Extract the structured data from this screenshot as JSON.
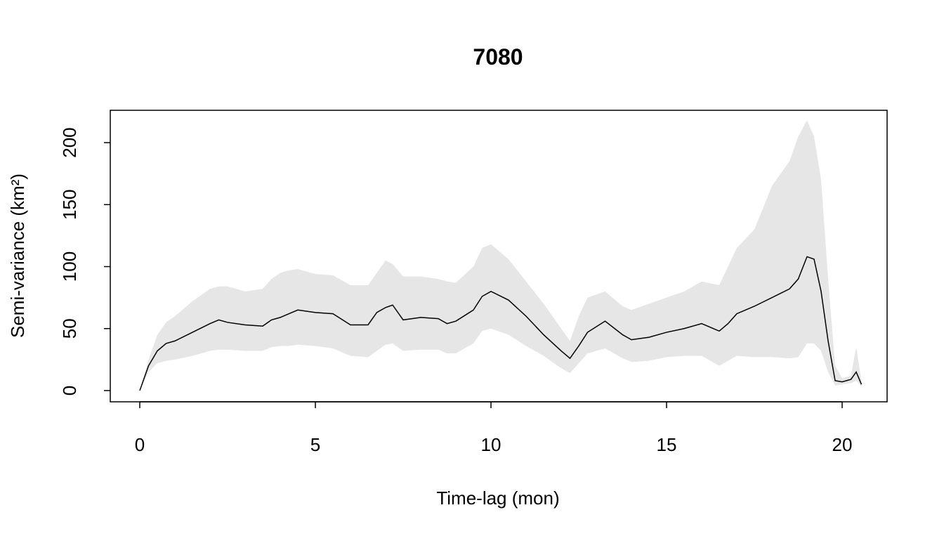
{
  "chart_data": {
    "type": "line",
    "title": "7080",
    "x_label": "Time-lag (mon)",
    "y_label": "Semi-variance (km²)",
    "x": [
      0,
      0.25,
      0.5,
      0.75,
      1,
      1.5,
      2,
      2.25,
      2.5,
      3,
      3.5,
      3.75,
      4,
      4.25,
      4.5,
      5,
      5.5,
      6,
      6.5,
      6.75,
      7,
      7.2,
      7.5,
      8,
      8.5,
      8.75,
      9,
      9.5,
      9.75,
      10,
      10.5,
      11,
      11.5,
      12,
      12.25,
      12.5,
      12.75,
      13.25,
      13.75,
      14,
      14.5,
      15,
      15.5,
      16,
      16.5,
      16.75,
      17,
      17.5,
      18,
      18.5,
      18.75,
      19,
      19.2,
      19.4,
      19.6,
      19.8,
      20,
      20.25,
      20.4,
      20.55
    ],
    "series": [
      {
        "color": "#000000",
        "values": [
          0,
          20,
          32,
          38,
          40,
          47,
          54,
          57,
          55,
          53,
          52,
          57,
          59,
          62,
          65,
          63,
          62,
          53,
          53,
          63,
          67,
          69,
          57,
          59,
          58,
          54,
          56,
          65,
          76,
          80,
          73,
          60,
          45,
          32,
          26,
          36,
          47,
          56,
          45,
          41,
          43,
          47,
          50,
          54,
          48,
          54,
          62,
          68,
          75,
          82,
          90,
          108,
          106,
          80,
          40,
          8,
          7,
          9,
          15,
          5
        ]
      }
    ],
    "band": {
      "color": "#e6e6e6",
      "upper": [
        0,
        25,
        45,
        55,
        60,
        72,
        82,
        84,
        84,
        80,
        82,
        90,
        95,
        97,
        98,
        94,
        93,
        85,
        85,
        95,
        105,
        102,
        92,
        92,
        90,
        88,
        87,
        100,
        115,
        118,
        106,
        88,
        70,
        50,
        40,
        60,
        75,
        80,
        68,
        65,
        70,
        75,
        80,
        88,
        85,
        100,
        115,
        130,
        165,
        185,
        205,
        218,
        205,
        170,
        90,
        20,
        10,
        12,
        35,
        8
      ],
      "lower": [
        0,
        15,
        22,
        24,
        25,
        28,
        32,
        33,
        33,
        32,
        32,
        35,
        36,
        36,
        37,
        36,
        34,
        28,
        27,
        32,
        37,
        38,
        32,
        33,
        33,
        30,
        30,
        38,
        48,
        50,
        45,
        36,
        28,
        18,
        14,
        22,
        30,
        34,
        26,
        23,
        24,
        27,
        28,
        28,
        20,
        24,
        28,
        27,
        27,
        26,
        27,
        38,
        38,
        32,
        15,
        4,
        5,
        6,
        8,
        3
      ]
    },
    "xlim": [
      -0.84,
      21.28
    ],
    "ylim": [
      -9.07,
      226.1
    ],
    "xticks": [
      0,
      5,
      10,
      15,
      20
    ],
    "yticks": [
      0,
      50,
      100,
      150,
      200
    ]
  }
}
